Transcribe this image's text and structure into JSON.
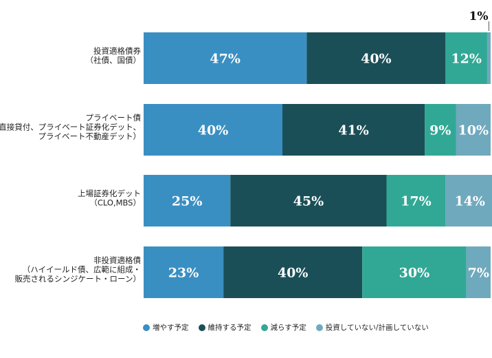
{
  "chart_data": {
    "type": "bar",
    "orientation": "horizontal",
    "stacked": true,
    "categories": [
      [
        "投資適格債券",
        "（社債、国債）"
      ],
      [
        "プライベート債",
        "（直接貸付、プライベート証券化デット、",
        "プライベート不動産デット）"
      ],
      [
        "上場証券化デット",
        "（CLO,MBS）"
      ],
      [
        "非投資適格債",
        "（ハイイールド債、広範に組成・",
        "販売されるシンジケート・ローン）"
      ]
    ],
    "series": [
      {
        "name": "増やす予定",
        "color": "#3a8fc2",
        "values": [
          47,
          40,
          25,
          23
        ]
      },
      {
        "name": "維持する予定",
        "color": "#1b4f58",
        "values": [
          40,
          41,
          45,
          40
        ]
      },
      {
        "name": "減らす予定",
        "color": "#31a895",
        "values": [
          12,
          9,
          17,
          30
        ]
      },
      {
        "name": "投資していない/計画していない",
        "color": "#6fa9bd",
        "values": [
          1,
          10,
          14,
          7
        ]
      }
    ],
    "value_labels": [
      [
        "47%",
        "40%",
        "12%",
        "1%"
      ],
      [
        "40%",
        "41%",
        "9%",
        "10%"
      ],
      [
        "25%",
        "45%",
        "17%",
        "14%"
      ],
      [
        "23%",
        "40%",
        "30%",
        "7%"
      ]
    ],
    "xlim": [
      0,
      100
    ],
    "legend_position": "bottom",
    "grid": false
  }
}
